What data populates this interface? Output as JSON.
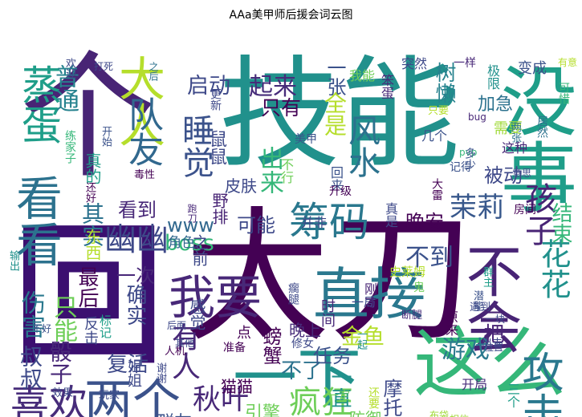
{
  "chart_data": {
    "type": "wordcloud",
    "title": "AAa美甲师后援会词云图",
    "colormap": "viridis",
    "words": [
      {
        "text": "技能",
        "color": "#21918c"
      },
      {
        "text": "太刀",
        "color": "#440154"
      },
      {
        "text": "回",
        "color": "#3b0f70"
      },
      {
        "text": "个",
        "color": "#482475"
      },
      {
        "text": "没事",
        "color": "#1f9e89"
      },
      {
        "text": "这么",
        "color": "#35b779"
      },
      {
        "text": "直接",
        "color": "#2a788e"
      },
      {
        "text": "筹码",
        "color": "#2a788e"
      },
      {
        "text": "一下",
        "color": "#21918c"
      },
      {
        "text": "我要",
        "color": "#482878"
      },
      {
        "text": "两个",
        "color": "#3b528b"
      },
      {
        "text": "喜欢",
        "color": "#472c7a"
      },
      {
        "text": "疯狂",
        "color": "#6ece58"
      },
      {
        "text": "秋叶",
        "color": "#482878"
      },
      {
        "text": "不会",
        "color": "#482475"
      },
      {
        "text": "看看",
        "color": "#2c728e"
      },
      {
        "text": "大人",
        "color": "#b5de2b"
      },
      {
        "text": "蒸蛋",
        "color": "#1f9e89"
      },
      {
        "text": "起来",
        "color": "#472c7a"
      },
      {
        "text": "一张",
        "color": "#3b528b"
      },
      {
        "text": "启动",
        "color": "#3e4989"
      },
      {
        "text": "队友",
        "color": "#31688e"
      },
      {
        "text": "普通",
        "color": "#26828e"
      },
      {
        "text": "睡觉",
        "color": "#3b528b"
      },
      {
        "text": "风水",
        "color": "#2c728e"
      },
      {
        "text": "www",
        "color": "#31688e"
      },
      {
        "text": "可能",
        "color": "#3e4989"
      },
      {
        "text": "茉莉",
        "color": "#38588c"
      },
      {
        "text": "孩子",
        "color": "#482475"
      },
      {
        "text": "幽幽",
        "color": "#3e4989"
      },
      {
        "text": "boss",
        "color": "#35b779"
      },
      {
        "text": "花花",
        "color": "#21918c"
      },
      {
        "text": "结束",
        "color": "#35b779"
      },
      {
        "text": "攻击",
        "color": "#2a788e"
      },
      {
        "text": "金鱼",
        "color": "#b5de2b"
      },
      {
        "text": "不到",
        "color": "#3b528b"
      },
      {
        "text": "一把",
        "color": "#482475"
      },
      {
        "text": "有人",
        "color": "#482878"
      },
      {
        "text": "游戏",
        "color": "#2a788e"
      },
      {
        "text": "伤害",
        "color": "#2a788e"
      },
      {
        "text": "叔叔",
        "color": "#3e4989"
      },
      {
        "text": "只能",
        "color": "#6ece58"
      },
      {
        "text": "骰子",
        "color": "#482878"
      },
      {
        "text": "最后",
        "color": "#440154"
      },
      {
        "text": "确实",
        "color": "#3e4989"
      },
      {
        "text": "复活",
        "color": "#3e4989"
      },
      {
        "text": "一次",
        "color": "#482878"
      },
      {
        "text": "出来",
        "color": "#35b779"
      },
      {
        "text": "全是",
        "color": "#b5de2b"
      },
      {
        "text": "只有",
        "color": "#440154"
      },
      {
        "text": "晚安",
        "color": "#440154"
      },
      {
        "text": "树懒",
        "color": "#26828e"
      },
      {
        "text": "被动",
        "color": "#3e4989"
      },
      {
        "text": "看到",
        "color": "#482878"
      },
      {
        "text": "其实",
        "color": "#2c728e"
      },
      {
        "text": "不了",
        "color": "#2c728e"
      },
      {
        "text": "一直",
        "color": "#21918c"
      },
      {
        "text": "螃蟹",
        "color": "#440154"
      },
      {
        "text": "任务",
        "color": "#3b528b"
      },
      {
        "text": "引擎",
        "color": "#6ece58"
      },
      {
        "text": "防御",
        "color": "#6ece58"
      },
      {
        "text": "摩托",
        "color": "#3e4989"
      },
      {
        "text": "皮肤",
        "color": "#3e4989"
      },
      {
        "text": "加急",
        "color": "#2c728e"
      },
      {
        "text": "晚上",
        "color": "#472c7a"
      },
      {
        "text": "之前",
        "color": "#3e4989"
      },
      {
        "text": "群友",
        "color": "#3b528b"
      },
      {
        "text": "美工刀",
        "color": "#a0da39"
      },
      {
        "text": "猫猫",
        "color": "#440154"
      },
      {
        "text": "姐姐",
        "color": "#3e4989"
      },
      {
        "text": "角色",
        "color": "#31688e"
      },
      {
        "text": "东西",
        "color": "#b5de2b"
      },
      {
        "text": "真的",
        "color": "#1f9e89"
      },
      {
        "text": "感觉",
        "color": "#3e4989"
      },
      {
        "text": "这是",
        "color": "#1f9e89"
      },
      {
        "text": "开局",
        "color": "#472c7a"
      },
      {
        "text": "三个",
        "color": "#1f9e89"
      },
      {
        "text": "野排",
        "color": "#482475"
      },
      {
        "text": "鼠鼠",
        "color": "#3e4989"
      },
      {
        "text": "更新",
        "color": "#3e4989"
      },
      {
        "text": "回来",
        "color": "#3b528b"
      },
      {
        "text": "不行",
        "color": "#6ece58"
      },
      {
        "text": "需要",
        "color": "#a0da39"
      },
      {
        "text": "这种",
        "color": "#482878"
      },
      {
        "text": "居然",
        "color": "#2c728e"
      },
      {
        "text": "记得",
        "color": "#3b528b"
      },
      {
        "text": "房间",
        "color": "#440154"
      },
      {
        "text": "变成",
        "color": "#3b528b"
      },
      {
        "text": "极限",
        "color": "#21918c"
      },
      {
        "text": "可惜",
        "color": "#35b779"
      },
      {
        "text": "有意思",
        "color": "#b5de2b"
      },
      {
        "text": "一样",
        "color": "#482878"
      },
      {
        "text": "突然",
        "color": "#3e4989"
      },
      {
        "text": "笨蛋",
        "color": "#482878"
      },
      {
        "text": "我能",
        "color": "#6ece58"
      },
      {
        "text": "几个",
        "color": "#3b528b"
      },
      {
        "text": "美甲",
        "color": "#3b528b"
      },
      {
        "text": "真是",
        "color": "#3e4989"
      },
      {
        "text": "升级",
        "color": "#440154"
      },
      {
        "text": "并非",
        "color": "#3e4989"
      },
      {
        "text": "史莱姆",
        "color": "#b5de2b"
      },
      {
        "text": "跑刀",
        "color": "#482878"
      },
      {
        "text": "一局",
        "color": "#3e4989"
      },
      {
        "text": "刚才",
        "color": "#482475"
      },
      {
        "text": "时间",
        "color": "#482878"
      },
      {
        "text": "潜能",
        "color": "#3b528b"
      },
      {
        "text": "遇到",
        "color": "#3e4989"
      },
      {
        "text": "一块",
        "color": "#3e4989"
      },
      {
        "text": "原来",
        "color": "#440154"
      },
      {
        "text": "位置",
        "color": "#3e4989"
      },
      {
        "text": "断腿",
        "color": "#472c7a"
      },
      {
        "text": "还要",
        "color": "#b5de2b"
      },
      {
        "text": "一定",
        "color": "#6ece58"
      },
      {
        "text": "准备",
        "color": "#440154"
      },
      {
        "text": "一起",
        "color": "#21918c"
      },
      {
        "text": "修女",
        "color": "#3e4989"
      },
      {
        "text": "瘸腿",
        "color": "#3e4989"
      },
      {
        "text": "反击",
        "color": "#3e4989"
      },
      {
        "text": "标记",
        "color": "#1f9e89"
      },
      {
        "text": "输出",
        "color": "#21918c"
      },
      {
        "text": "毒性",
        "color": "#440154"
      },
      {
        "text": "打死",
        "color": "#3e4989"
      },
      {
        "text": "之后",
        "color": "#2c728e"
      },
      {
        "text": "欢迎",
        "color": "#3e4989"
      },
      {
        "text": "还好",
        "color": "#440154"
      },
      {
        "text": "开始",
        "color": "#3b528b"
      },
      {
        "text": "练家子",
        "color": "#35b779"
      },
      {
        "text": "只要",
        "color": "#b5de2b"
      },
      {
        "text": "两张",
        "color": "#2c728e"
      },
      {
        "text": "出去",
        "color": "#3e4989"
      },
      {
        "text": "事件",
        "color": "#472c7a"
      },
      {
        "text": "玩家",
        "color": "#3e4989"
      },
      {
        "text": "效果",
        "color": "#3e4989"
      },
      {
        "text": "不好",
        "color": "#3b528b"
      },
      {
        "text": "谢谢",
        "color": "#3e4989"
      },
      {
        "text": "人机",
        "color": "#440154"
      },
      {
        "text": "其他",
        "color": "#3e4989"
      },
      {
        "text": "后面",
        "color": "#3e4989"
      },
      {
        "text": "点",
        "color": "#440154"
      },
      {
        "text": "bug",
        "color": "#482878"
      },
      {
        "text": "pvp",
        "color": "#35b779"
      },
      {
        "text": "多少",
        "color": "#3b528b"
      },
      {
        "text": "意思",
        "color": "#3e4989"
      },
      {
        "text": "大雷",
        "color": "#440154"
      },
      {
        "text": "群主",
        "color": "#1f9e89"
      },
      {
        "text": "布袋",
        "color": "#a0da39"
      },
      {
        "text": "鬼",
        "color": "#6ece58"
      },
      {
        "text": "相信",
        "color": "#a0da39"
      }
    ]
  }
}
